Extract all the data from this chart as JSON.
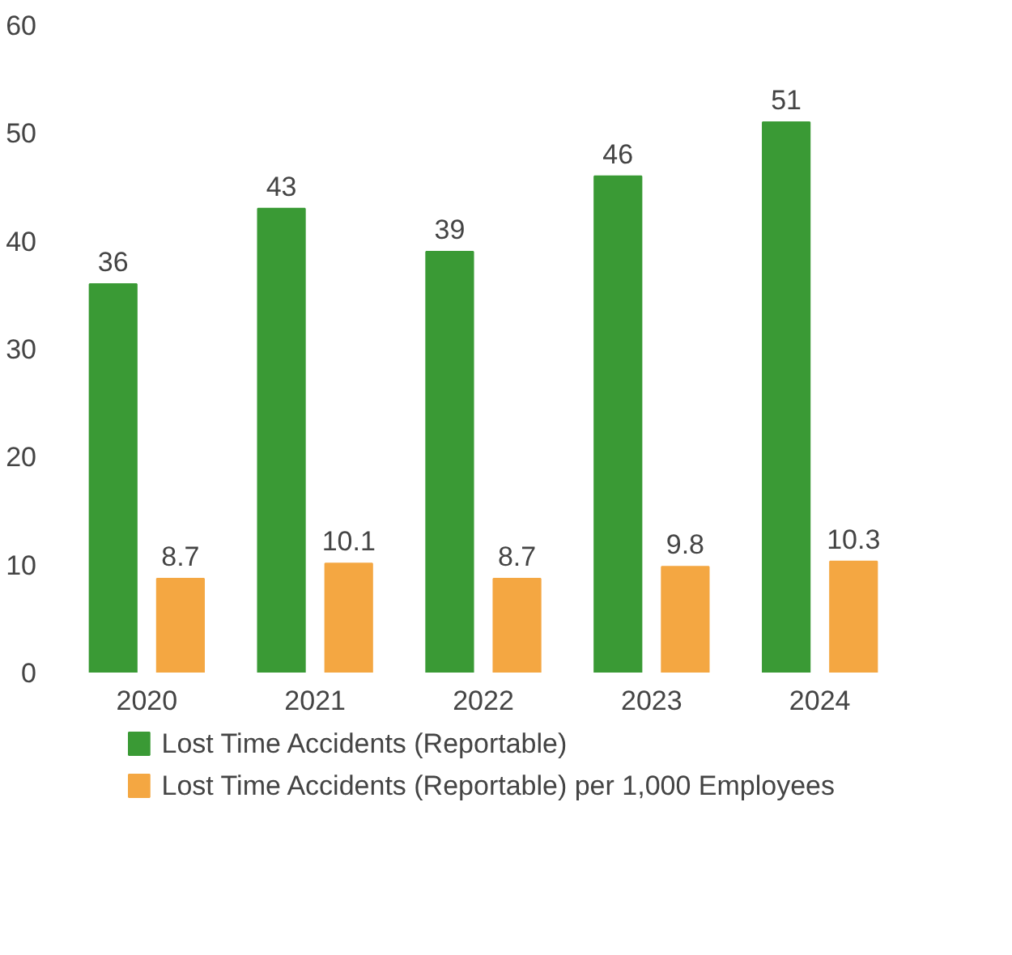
{
  "chart_data": {
    "type": "bar",
    "categories": [
      "2020",
      "2021",
      "2022",
      "2023",
      "2024"
    ],
    "series": [
      {
        "name": "Lost Time Accidents (Reportable)",
        "color": "#3a9a35",
        "values": [
          36,
          43,
          39,
          46,
          51
        ]
      },
      {
        "name": "Lost Time Accidents (Reportable) per 1,000 Employees",
        "color": "#f4a742",
        "values": [
          8.7,
          10.1,
          8.7,
          9.8,
          10.3
        ]
      }
    ],
    "ylim": [
      0,
      60
    ],
    "yticks": [
      0,
      10,
      20,
      30,
      40,
      50,
      60
    ],
    "grid": false,
    "legend": "bottom",
    "data_labels": true
  }
}
